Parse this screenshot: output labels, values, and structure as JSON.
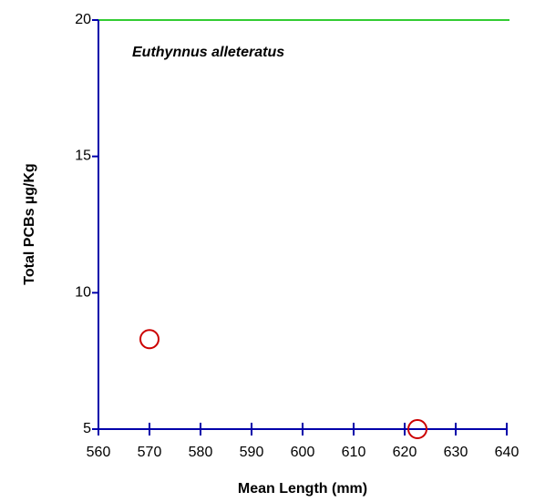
{
  "chart_data": {
    "type": "scatter",
    "title": "",
    "xlabel": "Mean Length (mm)",
    "ylabel": "Total PCBs µg/Kg",
    "annotation": "Euthynnus alleteratus",
    "xlim": [
      560,
      640
    ],
    "ylim": [
      5,
      20
    ],
    "xticks": [
      560,
      570,
      580,
      590,
      600,
      610,
      620,
      630,
      640
    ],
    "yticks": [
      5,
      10,
      15,
      20
    ],
    "grid": false,
    "reference_line": {
      "y": 20,
      "color": "#33cc33"
    },
    "axis_color": "#0000aa",
    "marker_color": "#cc0000",
    "series": [
      {
        "points": [
          {
            "x": 570,
            "y": 8.3
          },
          {
            "x": 622.5,
            "y": 5.0
          }
        ]
      }
    ]
  }
}
